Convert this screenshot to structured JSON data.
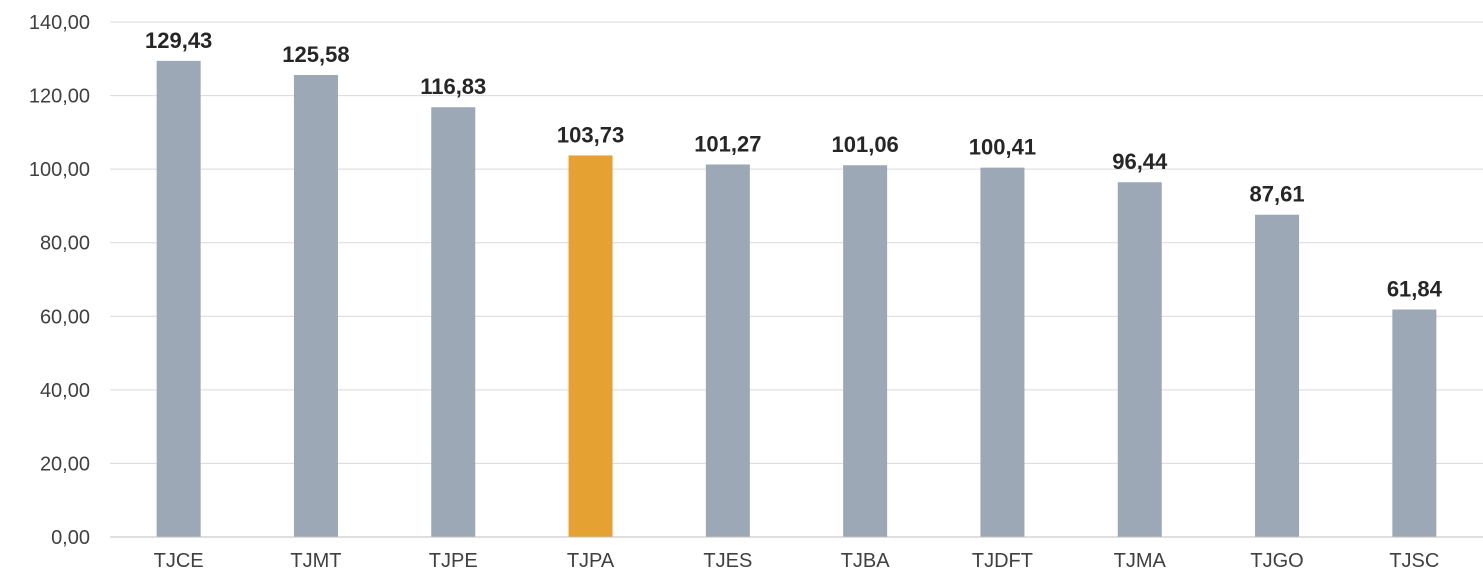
{
  "chart_data": {
    "type": "bar",
    "title": "",
    "xlabel": "",
    "ylabel": "",
    "categories": [
      "TJCE",
      "TJMT",
      "TJPE",
      "TJPA",
      "TJES",
      "TJBA",
      "TJDFT",
      "TJMA",
      "TJGO",
      "TJSC"
    ],
    "values": [
      129.43,
      125.58,
      116.83,
      103.73,
      101.27,
      101.06,
      100.41,
      96.44,
      87.61,
      61.84
    ],
    "data_labels": [
      "129,43",
      "125,58",
      "116,83",
      "103,73",
      "101,27",
      "101,06",
      "100,41",
      "96,44",
      "87,61",
      "61,84"
    ],
    "ylim": [
      0,
      140
    ],
    "yticks": [
      0,
      20,
      40,
      60,
      80,
      100,
      120,
      140
    ],
    "ytick_labels": [
      "0,00",
      "20,00",
      "40,00",
      "60,00",
      "80,00",
      "100,00",
      "120,00",
      "140,00"
    ],
    "grid": true,
    "legend": "none",
    "colors": {
      "default_bar": "#9ca8b6",
      "highlight_bar": "#e5a132",
      "highlight_category": "TJPA"
    }
  }
}
